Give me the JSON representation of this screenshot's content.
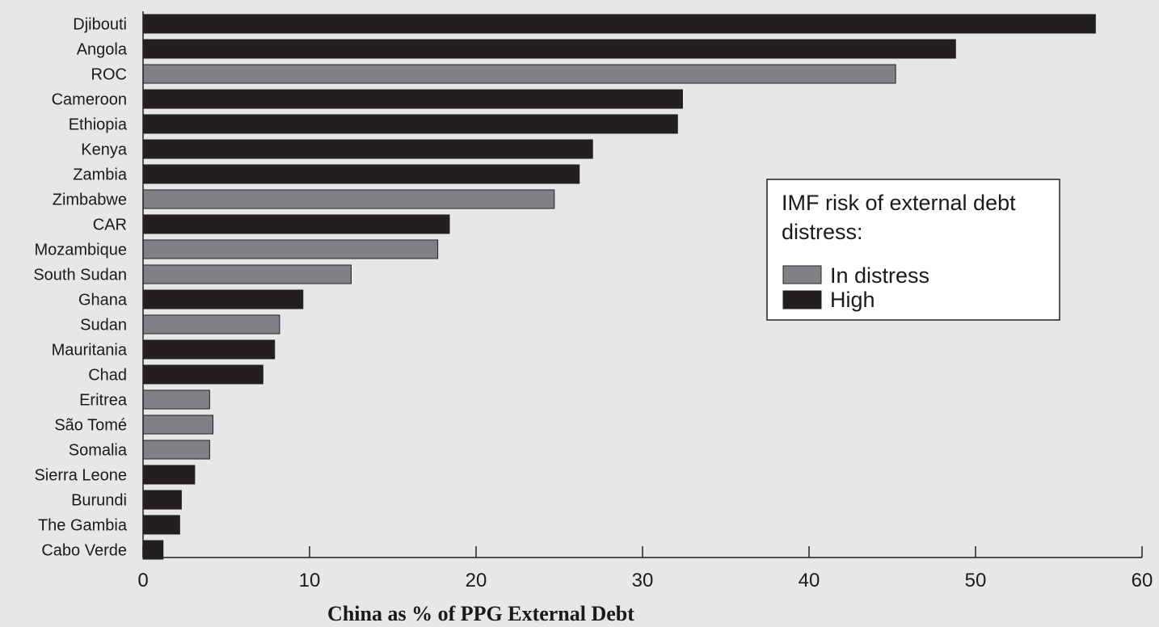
{
  "chart_data": {
    "type": "bar",
    "orientation": "horizontal",
    "categories": [
      "Djibouti",
      "Angola",
      "ROC",
      "Cameroon",
      "Ethiopia",
      "Kenya",
      "Zambia",
      "Zimbabwe",
      "CAR",
      "Mozambique",
      "South Sudan",
      "Ghana",
      "Sudan",
      "Mauritania",
      "Chad",
      "Eritrea",
      "São Tomé",
      "Somalia",
      "Sierra Leone",
      "Burundi",
      "The Gambia",
      "Cabo Verde"
    ],
    "values": [
      57.2,
      48.8,
      45.2,
      32.4,
      32.1,
      27.0,
      26.2,
      24.7,
      18.4,
      17.7,
      12.5,
      9.6,
      8.2,
      7.9,
      7.2,
      4.0,
      4.2,
      4.0,
      3.1,
      2.3,
      2.2,
      1.2
    ],
    "risk": [
      "High",
      "High",
      "In distress",
      "High",
      "High",
      "High",
      "High",
      "In distress",
      "High",
      "In distress",
      "In distress",
      "High",
      "In distress",
      "High",
      "High",
      "In distress",
      "In distress",
      "In distress",
      "High",
      "High",
      "High",
      "High"
    ],
    "xlabel": "China as % of PPG External Debt",
    "ylabel": "",
    "xlim": [
      0,
      60
    ],
    "xticks": [
      0,
      10,
      20,
      30,
      40,
      50,
      60
    ],
    "xtick_labels": [
      "0",
      "10",
      "20",
      "30",
      "40",
      "50",
      "60"
    ],
    "grid": false,
    "legend": {
      "title_lines": [
        "IMF risk of external debt",
        "distress:"
      ],
      "placement": "right",
      "items": [
        {
          "label": "In distress",
          "color": "#808184"
        },
        {
          "label": "High",
          "color": "#231f20"
        }
      ]
    },
    "colors": {
      "In distress": "#808184",
      "High": "#231f20",
      "background": "#e6e7e8"
    }
  }
}
